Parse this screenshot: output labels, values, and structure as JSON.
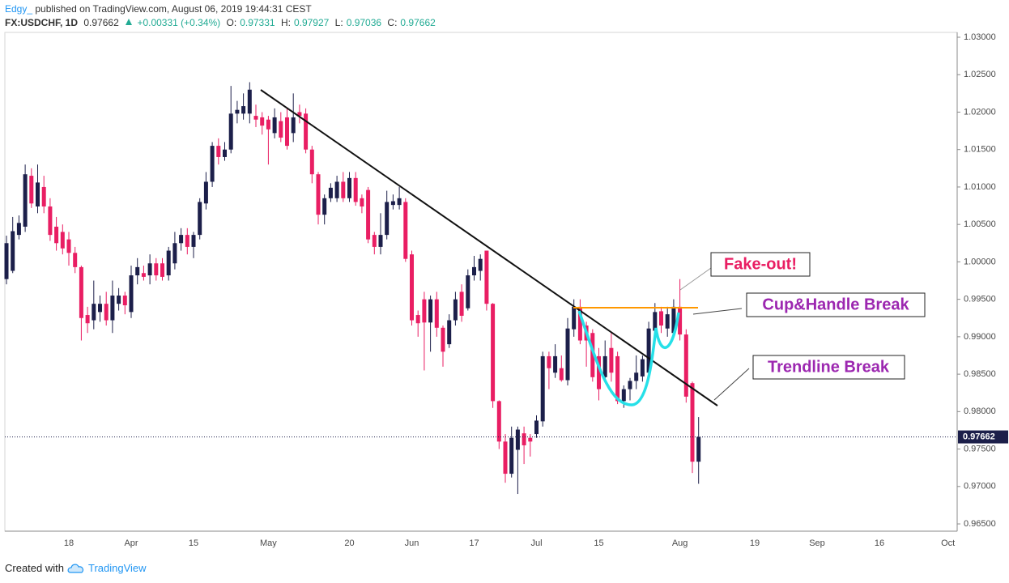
{
  "header": {
    "author": "Edgy_",
    "published": "published on TradingView.com, August 06, 2019 19:44:31 CEST",
    "symbol": "FX:USDCHF, 1D",
    "change": "+0.00331 (+0.34%)",
    "open_label": "O:",
    "high_label": "H:",
    "low_label": "L:",
    "close_label": "C:"
  },
  "footer": {
    "created": "Created with",
    "brand": "TradingView"
  },
  "annotations": [
    "Fake-out!",
    "Cup&Handle Break",
    "Trendline Break"
  ],
  "chart_data": {
    "type": "candlestick",
    "up_color": "#1c1f4a",
    "down_color": "#e91e63",
    "categories": [
      null,
      null,
      null,
      null,
      null,
      null,
      null,
      null,
      null,
      null,
      "18",
      null,
      null,
      null,
      null,
      null,
      null,
      null,
      null,
      null,
      "Apr",
      null,
      null,
      null,
      null,
      null,
      null,
      null,
      null,
      null,
      "15",
      null,
      null,
      null,
      null,
      null,
      null,
      null,
      null,
      null,
      null,
      null,
      "May",
      null,
      null,
      null,
      null,
      null,
      null,
      null,
      null,
      null,
      null,
      null,
      null,
      "20",
      null,
      null,
      null,
      null,
      null,
      null,
      null,
      null,
      null,
      "Jun",
      null,
      null,
      null,
      null,
      null,
      null,
      null,
      null,
      null,
      "17",
      null,
      null,
      null,
      null,
      null,
      null,
      null,
      null,
      null,
      "Jul",
      null,
      null,
      null,
      null,
      null,
      null,
      null,
      null,
      null,
      "15",
      null,
      null,
      null,
      null,
      null,
      null,
      null,
      null,
      null,
      null,
      null,
      null,
      "Aug",
      null,
      null,
      null,
      null,
      null,
      null,
      null,
      null,
      null,
      null,
      null,
      "19",
      null,
      null,
      null,
      null,
      null,
      null,
      null,
      null,
      null,
      "Sep",
      null,
      null,
      null,
      null,
      null,
      null,
      null,
      null,
      null,
      "16",
      null,
      null,
      null,
      null,
      null,
      null,
      null,
      null,
      null,
      null,
      "Oct",
      null
    ],
    "open": [
      0.9977,
      0.9988,
      1.0036,
      1.0047,
      1.0115,
      1.0074,
      1.01,
      1.0074,
      1.0047,
      1.004,
      1.003,
      1.0012,
      0.9993,
      0.9929,
      0.9922,
      0.9933,
      0.9944,
      0.9922,
      0.9944,
      0.9955,
      0.9933,
      0.9982,
      0.9985,
      0.9982,
      0.9998,
      0.9998,
      0.9982,
      0.9998,
      1.0025,
      1.0036,
      1.002,
      1.0036,
      1.0078,
      1.0107,
      1.0155,
      1.014,
      1.015,
      1.0198,
      1.0198,
      1.0198,
      1.0195,
      1.0193,
      1.019,
      1.0172,
      1.0188,
      1.0193,
      1.0172,
      1.02,
      1.0198,
      1.015,
      1.0117,
      1.0063,
      1.0085,
      1.0085,
      1.0107,
      1.0085,
      1.0112,
      1.0085,
      1.0096,
      1.0036,
      1.002,
      1.0036,
      1.0076,
      1.0076,
      1.008,
      1.001,
      0.9929,
      0.995,
      0.9919,
      0.995,
      0.9912,
      0.989,
      0.9922,
      0.996,
      0.9938,
      0.9982,
      0.9988,
      1.0015,
      0.9944,
      0.9814,
      0.976,
      0.9717,
      0.9749,
      0.9771,
      0.9765,
      0.977,
      0.9787,
      0.9874,
      0.9852,
      0.9858,
      0.9842,
      0.991,
      0.994,
      0.9915,
      0.9905,
      0.9874,
      0.9846,
      0.9885,
      0.9874,
      0.9814,
      0.983,
      0.9841,
      0.9847,
      0.9852,
      0.9908,
      0.9934,
      0.9911,
      0.9905,
      0.994,
      0.9903,
      0.9838,
      0.97331,
      null,
      null,
      null,
      null,
      null,
      null,
      null,
      null,
      null,
      null,
      null,
      null,
      null,
      null,
      null,
      null,
      null,
      null,
      null,
      null,
      null,
      null,
      null,
      null,
      null,
      null,
      null,
      null,
      null,
      null,
      null,
      null,
      null,
      null,
      null,
      null,
      null,
      null,
      null,
      null,
      null
    ],
    "high": [
      1.0035,
      1.006,
      1.0062,
      1.013,
      1.0125,
      1.013,
      1.0115,
      1.0085,
      1.006,
      1.005,
      1.004,
      1.002,
      0.9995,
      0.994,
      0.9975,
      0.9955,
      0.996,
      0.9975,
      0.9965,
      0.996,
      0.9995,
      1.0005,
      0.9995,
      1.001,
      1.0005,
      1.0005,
      1.002,
      1.004,
      1.0045,
      1.0045,
      1.004,
      1.0085,
      1.012,
      1.016,
      1.0165,
      1.016,
      1.0235,
      1.0215,
      1.0225,
      1.024,
      1.021,
      1.02,
      1.0195,
      1.0205,
      1.02,
      1.0205,
      1.0225,
      1.021,
      1.0205,
      1.0155,
      1.012,
      1.009,
      1.0105,
      1.0115,
      1.012,
      1.012,
      1.012,
      1.009,
      1.01,
      1.004,
      1.0065,
      1.0095,
      1.009,
      1.01,
      1.0085,
      1.0015,
      0.9935,
      0.996,
      0.9955,
      0.996,
      0.9915,
      0.993,
      0.996,
      0.997,
      0.999,
      1.0008,
      1.001,
      1.0015,
      0.9945,
      0.9815,
      0.977,
      0.978,
      0.978,
      0.978,
      0.977,
      0.9795,
      0.988,
      0.988,
      0.989,
      0.9875,
      0.9925,
      0.995,
      0.995,
      0.992,
      0.991,
      0.9885,
      0.9895,
      0.9905,
      0.988,
      0.9835,
      0.9845,
      0.9875,
      0.9875,
      0.992,
      0.9945,
      0.994,
      0.994,
      0.995,
      0.9977,
      0.991,
      0.984,
      0.97927,
      null,
      null,
      null,
      null,
      null,
      null,
      null,
      null,
      null,
      null,
      null,
      null,
      null,
      null,
      null,
      null,
      null,
      null,
      null,
      null,
      null,
      null,
      null,
      null,
      null,
      null,
      null,
      null,
      null,
      null,
      null,
      null,
      null,
      null,
      null,
      null,
      null,
      null,
      null,
      null,
      null
    ],
    "low": [
      0.997,
      0.9985,
      1.003,
      1.004,
      1.0072,
      1.0065,
      1.0065,
      1.0028,
      1.0015,
      1.001,
      0.9995,
      0.9985,
      0.9895,
      0.9905,
      0.991,
      0.992,
      0.9915,
      0.9905,
      0.9935,
      0.993,
      0.9925,
      0.997,
      0.9975,
      0.997,
      0.9975,
      0.9975,
      0.9975,
      0.999,
      1.0015,
      1.001,
      1.0005,
      1.003,
      1.007,
      1.01,
      1.013,
      1.0135,
      1.0145,
      1.0185,
      1.019,
      1.0185,
      1.018,
      1.017,
      1.013,
      1.0165,
      1.016,
      1.015,
      1.016,
      1.0185,
      1.0145,
      1.0105,
      1.005,
      1.005,
      1.008,
      1.008,
      1.008,
      1.008,
      1.0075,
      1.0065,
      1.0025,
      1.001,
      1.001,
      1.003,
      1.007,
      1.007,
      1.0,
      0.9915,
      0.99,
      0.9855,
      0.988,
      0.99,
      0.986,
      0.9885,
      0.9915,
      0.992,
      0.9935,
      0.9975,
      0.9975,
      0.9935,
      0.9805,
      0.975,
      0.9705,
      0.9712,
      0.969,
      0.973,
      0.974,
      0.9765,
      0.978,
      0.983,
      0.9845,
      0.984,
      0.9835,
      0.99,
      0.989,
      0.986,
      0.984,
      0.9815,
      0.984,
      0.984,
      0.981,
      0.9805,
      0.9815,
      0.983,
      0.984,
      0.9845,
      0.99,
      0.9905,
      0.99,
      0.99,
      0.9895,
      0.9812,
      0.9718,
      0.97036,
      null,
      null,
      null,
      null,
      null,
      null,
      null,
      null,
      null,
      null,
      null,
      null,
      null,
      null,
      null,
      null,
      null,
      null,
      null,
      null,
      null,
      null,
      null,
      null,
      null,
      null,
      null,
      null,
      null,
      null,
      null,
      null,
      null,
      null,
      null,
      null,
      null,
      null,
      null,
      null,
      null
    ],
    "close": [
      1.0025,
      1.0041,
      1.0052,
      1.0117,
      1.0078,
      1.0106,
      1.0074,
      1.0036,
      1.0025,
      1.0018,
      1.0012,
      0.9993,
      0.9925,
      0.9918,
      0.9944,
      0.9944,
      0.9922,
      0.9955,
      0.9955,
      0.9942,
      0.9982,
      0.9993,
      0.998,
      0.9998,
      0.9982,
      0.998,
      1.0015,
      1.0025,
      1.0036,
      1.002,
      1.0036,
      1.008,
      1.0107,
      1.0155,
      1.014,
      1.015,
      1.0198,
      1.0203,
      1.0208,
      1.023,
      1.019,
      1.0182,
      1.0177,
      1.0193,
      1.0166,
      1.0155,
      1.0193,
      1.0195,
      1.015,
      1.0117,
      1.0063,
      1.0085,
      1.0099,
      1.0107,
      1.0085,
      1.0112,
      1.008,
      1.0074,
      1.003,
      1.002,
      1.0036,
      1.008,
      1.0081,
      1.0085,
      1.0004,
      0.9922,
      0.9918,
      0.9919,
      0.995,
      0.9912,
      0.988,
      0.9922,
      0.995,
      0.9928,
      0.9982,
      0.9993,
      1.0004,
      0.9944,
      0.9814,
      0.976,
      0.9717,
      0.9765,
      0.9776,
      0.9755,
      0.976,
      0.9788,
      0.9874,
      0.9858,
      0.9874,
      0.9842,
      0.9911,
      0.994,
      0.9895,
      0.9895,
      0.9846,
      0.983,
      0.9874,
      0.9852,
      0.9814,
      0.983,
      0.9841,
      0.9852,
      0.987,
      0.9911,
      0.9933,
      0.9915,
      0.993,
      0.994,
      0.9903,
      0.982,
      0.97331,
      0.97662,
      null,
      null,
      null,
      null,
      null,
      null,
      null,
      null,
      null,
      null,
      null,
      null,
      null,
      null,
      null,
      null,
      null,
      null,
      null,
      null,
      null,
      null,
      null,
      null,
      null,
      null,
      null,
      null,
      null,
      null,
      null,
      null,
      null,
      null,
      null,
      null,
      null,
      null,
      null,
      null,
      null
    ],
    "ylim": [
      0.96403,
      1.03065
    ],
    "yticks": [
      {
        "value": 0.965,
        "label": "0.96500"
      },
      {
        "value": 0.97,
        "label": "0.97000"
      },
      {
        "value": 0.975,
        "label": "0.97500"
      },
      {
        "value": 0.98,
        "label": "0.98000"
      },
      {
        "value": 0.985,
        "label": "0.98500"
      },
      {
        "value": 0.99,
        "label": "0.99000"
      },
      {
        "value": 0.995,
        "label": "0.99500"
      },
      {
        "value": 1.0,
        "label": "1.00000"
      },
      {
        "value": 1.005,
        "label": "1.00500"
      },
      {
        "value": 1.01,
        "label": "1.01000"
      },
      {
        "value": 1.015,
        "label": "1.01500"
      },
      {
        "value": 1.02,
        "label": "1.02000"
      },
      {
        "value": 1.025,
        "label": "1.02500"
      },
      {
        "value": 1.03,
        "label": "1.03000"
      }
    ],
    "grid": false
  }
}
